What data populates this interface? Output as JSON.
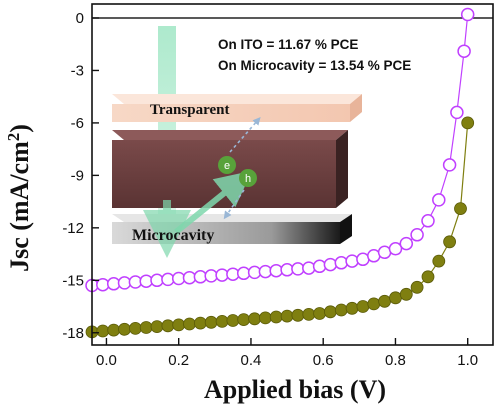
{
  "chart_data": {
    "type": "scatter",
    "title": "",
    "xlabel": "Applied bias (V)",
    "ylabel": "Jsc (mA/cm",
    "ylabel_sup": "2",
    "ylabel_close": ")",
    "xlim": [
      -0.04,
      1.07
    ],
    "ylim": [
      -18.7,
      0.8
    ],
    "xticks": [
      0.0,
      0.2,
      0.4,
      0.6,
      0.8,
      1.0
    ],
    "xtick_labels": [
      "0.0",
      "0.2",
      "0.4",
      "0.6",
      "0.8",
      "1.0"
    ],
    "yticks": [
      0,
      -3,
      -6,
      -9,
      -12,
      -15,
      -18
    ],
    "ytick_labels": [
      "0",
      "-3",
      "-6",
      "-9",
      "-12",
      "-15",
      "-18"
    ],
    "grid": false,
    "annotations": [
      "On ITO = 11.67 % PCE",
      "On Microcavity = 13.54 % PCE"
    ],
    "inset": {
      "top_layer_label": "Transparent",
      "bottom_layer_label": "Microcavity",
      "electron_label": "e",
      "hole_label": "h"
    },
    "series": [
      {
        "color": "#c040ff",
        "marker": "open-circle",
        "x": [
          -0.04,
          -0.01,
          0.02,
          0.05,
          0.08,
          0.11,
          0.14,
          0.17,
          0.2,
          0.23,
          0.26,
          0.29,
          0.32,
          0.35,
          0.38,
          0.41,
          0.44,
          0.47,
          0.5,
          0.53,
          0.56,
          0.59,
          0.62,
          0.65,
          0.68,
          0.71,
          0.74,
          0.77,
          0.8,
          0.83,
          0.86,
          0.89,
          0.92,
          0.95,
          0.97,
          0.99,
          1.0
        ],
        "y": [
          -15.3,
          -15.25,
          -15.2,
          -15.15,
          -15.1,
          -15.05,
          -15.0,
          -14.95,
          -14.9,
          -14.85,
          -14.8,
          -14.75,
          -14.7,
          -14.65,
          -14.6,
          -14.55,
          -14.5,
          -14.45,
          -14.4,
          -14.35,
          -14.3,
          -14.2,
          -14.1,
          -14.0,
          -13.9,
          -13.8,
          -13.6,
          -13.4,
          -13.2,
          -12.9,
          -12.4,
          -11.6,
          -10.4,
          -8.4,
          -5.4,
          -1.9,
          0.2
        ]
      },
      {
        "color": "#7f7f10",
        "marker": "filled-circle",
        "x": [
          -0.04,
          -0.01,
          0.02,
          0.05,
          0.08,
          0.11,
          0.14,
          0.17,
          0.2,
          0.23,
          0.26,
          0.29,
          0.32,
          0.35,
          0.38,
          0.41,
          0.44,
          0.47,
          0.5,
          0.53,
          0.56,
          0.59,
          0.62,
          0.65,
          0.68,
          0.71,
          0.74,
          0.77,
          0.8,
          0.83,
          0.86,
          0.89,
          0.92,
          0.95,
          0.98,
          1.0
        ],
        "y": [
          -17.95,
          -17.9,
          -17.85,
          -17.8,
          -17.75,
          -17.7,
          -17.65,
          -17.6,
          -17.55,
          -17.5,
          -17.45,
          -17.4,
          -17.35,
          -17.3,
          -17.25,
          -17.2,
          -17.15,
          -17.1,
          -17.05,
          -17.0,
          -16.95,
          -16.9,
          -16.8,
          -16.7,
          -16.6,
          -16.5,
          -16.35,
          -16.2,
          -16.0,
          -15.8,
          -15.4,
          -14.8,
          -13.9,
          -12.8,
          -10.9,
          -6.0
        ]
      }
    ]
  }
}
